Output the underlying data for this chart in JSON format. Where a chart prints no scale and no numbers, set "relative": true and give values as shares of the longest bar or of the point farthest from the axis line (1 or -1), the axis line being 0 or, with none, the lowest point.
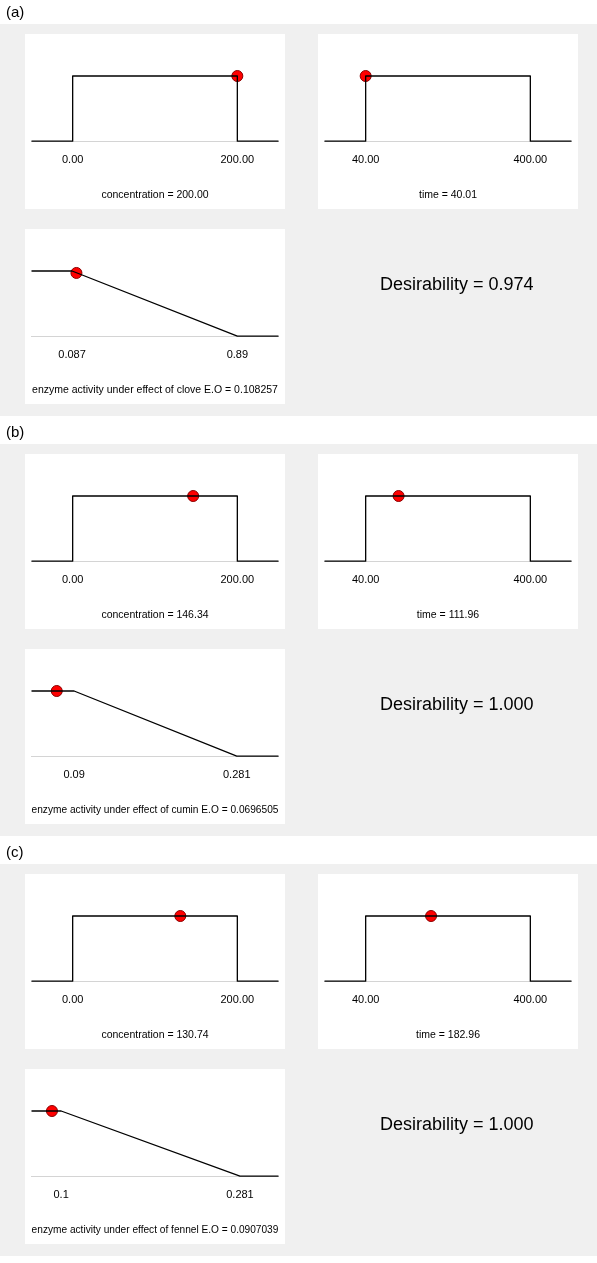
{
  "chart_data": [
    {
      "type": "other",
      "title": "(a)"
    },
    {
      "type": "line",
      "relative": true,
      "tick_labels": "x",
      "xlabel": "concentration = 200.00",
      "xlim": [
        -50,
        250
      ],
      "xticks": [
        {
          "value": 0,
          "label": "0.00"
        },
        {
          "value": 200,
          "label": "200.00"
        }
      ],
      "series": [
        {
          "type": "line",
          "color": "#000000",
          "marker": "none",
          "x": [
            -50,
            0,
            0,
            200,
            200,
            250
          ],
          "values": [
            0,
            0,
            1,
            1,
            0,
            0
          ]
        },
        {
          "type": "scatter",
          "color": "#ff0000",
          "marker": "circle",
          "x": [
            200
          ],
          "values": [
            1
          ]
        }
      ]
    },
    {
      "type": "line",
      "relative": true,
      "tick_labels": "x",
      "xlabel": "time = 40.01",
      "xlim": [
        -50,
        490
      ],
      "xticks": [
        {
          "value": 40,
          "label": "40.00"
        },
        {
          "value": 400,
          "label": "400.00"
        }
      ],
      "series": [
        {
          "type": "line",
          "color": "#000000",
          "marker": "none",
          "x": [
            -50,
            40,
            40,
            400,
            400,
            490
          ],
          "values": [
            0,
            0,
            1,
            1,
            0,
            0
          ]
        },
        {
          "type": "scatter",
          "color": "#ff0000",
          "marker": "circle",
          "x": [
            40.01
          ],
          "values": [
            1
          ]
        }
      ]
    },
    {
      "type": "line",
      "relative": true,
      "tick_labels": "x",
      "xlabel": "enzyme activity under effect of clove E.O = 0.108257",
      "xlim": [
        -0.11,
        1.09
      ],
      "xticks": [
        0.087,
        0.89
      ],
      "series": [
        {
          "type": "line",
          "color": "#000000",
          "marker": "none",
          "x": [
            -0.11,
            0.087,
            0.89,
            1.09
          ],
          "values": [
            1,
            1,
            0,
            0
          ]
        },
        {
          "type": "scatter",
          "color": "#ff0000",
          "marker": "circle",
          "x": [
            0.108257
          ],
          "values": [
            0.97
          ]
        }
      ]
    },
    {
      "type": "other",
      "title": "Desirability = 0.974"
    },
    {
      "type": "other",
      "title": "(b)"
    },
    {
      "type": "line",
      "relative": true,
      "tick_labels": "x",
      "xlabel": "concentration = 146.34",
      "xlim": [
        -50,
        250
      ],
      "xticks": [
        {
          "value": 0,
          "label": "0.00"
        },
        {
          "value": 200,
          "label": "200.00"
        }
      ],
      "series": [
        {
          "type": "line",
          "color": "#000000",
          "marker": "none",
          "x": [
            -50,
            0,
            0,
            200,
            200,
            250
          ],
          "values": [
            0,
            0,
            1,
            1,
            0,
            0
          ]
        },
        {
          "type": "scatter",
          "color": "#ff0000",
          "marker": "circle",
          "x": [
            146.34
          ],
          "values": [
            1
          ]
        }
      ]
    },
    {
      "type": "line",
      "relative": true,
      "tick_labels": "x",
      "xlabel": "time = 111.96",
      "xlim": [
        -50,
        490
      ],
      "xticks": [
        {
          "value": 40,
          "label": "40.00"
        },
        {
          "value": 400,
          "label": "400.00"
        }
      ],
      "series": [
        {
          "type": "line",
          "color": "#000000",
          "marker": "none",
          "x": [
            -50,
            40,
            40,
            400,
            400,
            490
          ],
          "values": [
            0,
            0,
            1,
            1,
            0,
            0
          ]
        },
        {
          "type": "scatter",
          "color": "#ff0000",
          "marker": "circle",
          "x": [
            111.96
          ],
          "values": [
            1
          ]
        }
      ]
    },
    {
      "type": "line",
      "relative": true,
      "tick_labels": "x",
      "xlabel": "enzyme activity under effect of cumin E.O = 0.0696505",
      "xlim": [
        0.04,
        0.33
      ],
      "xticks": [
        0.09,
        0.281
      ],
      "series": [
        {
          "type": "line",
          "color": "#000000",
          "marker": "none",
          "x": [
            0.04,
            0.09,
            0.281,
            0.33
          ],
          "values": [
            1,
            1,
            0,
            0
          ]
        },
        {
          "type": "scatter",
          "color": "#ff0000",
          "marker": "circle",
          "x": [
            0.0696505
          ],
          "values": [
            1
          ]
        }
      ]
    },
    {
      "type": "other",
      "title": "Desirability = 1.000"
    },
    {
      "type": "other",
      "title": "(c)"
    },
    {
      "type": "line",
      "relative": true,
      "tick_labels": "x",
      "xlabel": "concentration = 130.74",
      "xlim": [
        -50,
        250
      ],
      "xticks": [
        {
          "value": 0,
          "label": "0.00"
        },
        {
          "value": 200,
          "label": "200.00"
        }
      ],
      "series": [
        {
          "type": "line",
          "color": "#000000",
          "marker": "none",
          "x": [
            -50,
            0,
            0,
            200,
            200,
            250
          ],
          "values": [
            0,
            0,
            1,
            1,
            0,
            0
          ]
        },
        {
          "type": "scatter",
          "color": "#ff0000",
          "marker": "circle",
          "x": [
            130.74
          ],
          "values": [
            1
          ]
        }
      ]
    },
    {
      "type": "line",
      "relative": true,
      "tick_labels": "x",
      "xlabel": "time = 182.96",
      "xlim": [
        -50,
        490
      ],
      "xticks": [
        {
          "value": 40,
          "label": "40.00"
        },
        {
          "value": 400,
          "label": "400.00"
        }
      ],
      "series": [
        {
          "type": "line",
          "color": "#000000",
          "marker": "none",
          "x": [
            -50,
            40,
            40,
            400,
            400,
            490
          ],
          "values": [
            0,
            0,
            1,
            1,
            0,
            0
          ]
        },
        {
          "type": "scatter",
          "color": "#ff0000",
          "marker": "circle",
          "x": [
            182.96
          ],
          "values": [
            1
          ]
        }
      ]
    },
    {
      "type": "line",
      "relative": true,
      "tick_labels": "x",
      "xlabel": "enzyme activity under effect of fennel E.O = 0.0907039",
      "xlim": [
        0.07,
        0.32
      ],
      "xticks": [
        0.1,
        0.281
      ],
      "series": [
        {
          "type": "line",
          "color": "#000000",
          "marker": "none",
          "x": [
            0.07,
            0.1,
            0.281,
            0.32
          ],
          "values": [
            1,
            1,
            0,
            0
          ]
        },
        {
          "type": "scatter",
          "color": "#ff0000",
          "marker": "circle",
          "x": [
            0.0907039
          ],
          "values": [
            1
          ]
        }
      ]
    },
    {
      "type": "other",
      "title": "Desirability = 1.000"
    }
  ]
}
